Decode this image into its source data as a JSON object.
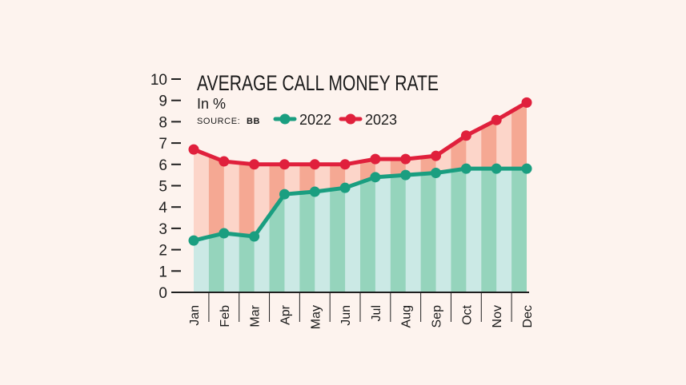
{
  "colors": {
    "background": "#fdf3ee",
    "series_2022": "#1a9e80",
    "series_2023": "#e0203c",
    "fill_2022_light": "#cbe9e5",
    "fill_2022_dark": "#95d4bc",
    "fill_2023_light": "#fcd5c9",
    "fill_2023_dark": "#f5a893",
    "axis": "#1f1f1f"
  },
  "chart_data": {
    "type": "line",
    "title": "AVERAGE CALL MONEY RATE",
    "subtitle": "In %",
    "source_label": "SOURCE:",
    "source_value": "BB",
    "xlabel": "",
    "ylabel": "In %",
    "ylim": [
      0,
      10
    ],
    "yticks": [
      0,
      1,
      2,
      3,
      4,
      5,
      6,
      7,
      8,
      9,
      10
    ],
    "categories": [
      "Jan",
      "Feb",
      "Mar",
      "Apr",
      "May",
      "Jun",
      "Jul",
      "Aug",
      "Sep",
      "Oct",
      "Nov",
      "Dec"
    ],
    "series": [
      {
        "name": "2022",
        "values": [
          2.43,
          2.77,
          2.62,
          4.6,
          4.72,
          4.9,
          5.4,
          5.5,
          5.6,
          5.8,
          5.8,
          5.8
        ]
      },
      {
        "name": "2023",
        "values": [
          6.7,
          6.14,
          6.0,
          6.0,
          6.0,
          6.0,
          6.25,
          6.25,
          6.4,
          7.35,
          8.08,
          8.9
        ]
      }
    ],
    "legend": [
      "2022",
      "2023"
    ],
    "legend_position": "top",
    "grid": false,
    "area_fill": "striped"
  }
}
